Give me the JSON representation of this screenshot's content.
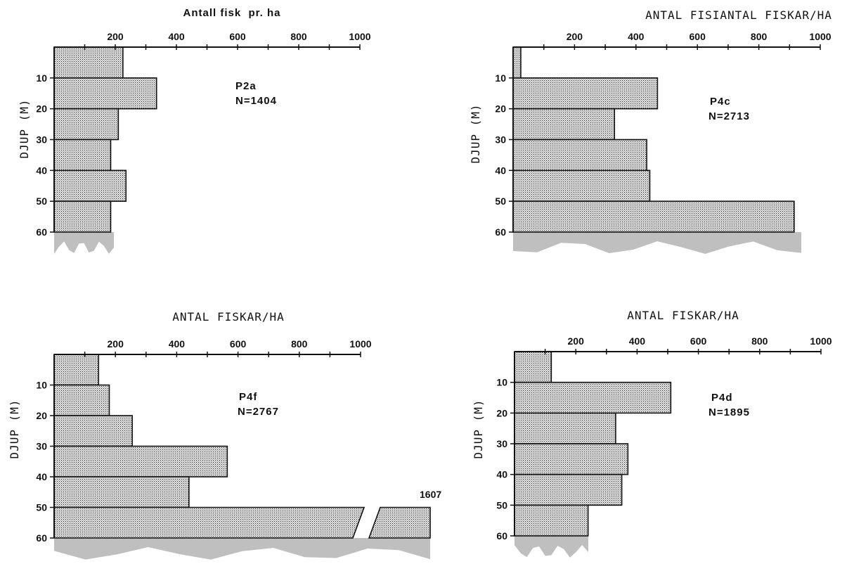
{
  "chart_data": [
    {
      "type": "bar",
      "orientation": "horizontal",
      "title": "Antall fisk  pr. ha",
      "ylabel": "DJUP (M)",
      "station": "P2a",
      "n_label": "N=1404",
      "xticks": [
        200,
        400,
        600,
        800,
        1000
      ],
      "yticks": [
        10,
        20,
        30,
        40,
        50,
        60
      ],
      "xlim": [
        0,
        1000
      ],
      "ylim": [
        0,
        60
      ],
      "depth_bins": [
        [
          0,
          10
        ],
        [
          10,
          20
        ],
        [
          20,
          30
        ],
        [
          30,
          40
        ],
        [
          40,
          50
        ],
        [
          50,
          60
        ]
      ],
      "values": [
        225,
        335,
        210,
        185,
        235,
        185
      ]
    },
    {
      "type": "bar",
      "orientation": "horizontal",
      "title": "ANTAL FISIANTAL FISKAR/HA",
      "ylabel": "DJUP (M)",
      "station": "P4c",
      "n_label": "N=2713",
      "xticks": [
        200,
        400,
        600,
        800,
        1000
      ],
      "yticks": [
        10,
        20,
        30,
        40,
        50,
        60
      ],
      "xlim": [
        0,
        1000
      ],
      "ylim": [
        0,
        60
      ],
      "depth_bins": [
        [
          0,
          10
        ],
        [
          10,
          20
        ],
        [
          20,
          30
        ],
        [
          30,
          40
        ],
        [
          40,
          50
        ],
        [
          50,
          60
        ]
      ],
      "values": [
        25,
        470,
        330,
        435,
        445,
        915
      ]
    },
    {
      "type": "bar",
      "orientation": "horizontal",
      "title": "ANTAL FISKAR/HA",
      "ylabel": "DJUP (M)",
      "station": "P4f",
      "n_label": "N=2767",
      "break_label": "1607",
      "xticks": [
        200,
        400,
        600,
        800,
        1000
      ],
      "yticks": [
        10,
        20,
        30,
        40,
        50,
        60
      ],
      "xlim": [
        0,
        1000
      ],
      "ylim": [
        0,
        60
      ],
      "depth_bins": [
        [
          0,
          10
        ],
        [
          10,
          20
        ],
        [
          20,
          30
        ],
        [
          30,
          40
        ],
        [
          40,
          50
        ],
        [
          50,
          60
        ]
      ],
      "values": [
        145,
        180,
        255,
        565,
        440,
        1607
      ]
    },
    {
      "type": "bar",
      "orientation": "horizontal",
      "title": "ANTAL FISKAR/HA",
      "ylabel": "DJUP (M)",
      "station": "P4d",
      "n_label": "N=1895",
      "xticks": [
        200,
        400,
        600,
        800,
        1000
      ],
      "yticks": [
        10,
        20,
        30,
        40,
        50,
        60
      ],
      "xlim": [
        0,
        1000
      ],
      "ylim": [
        0,
        60
      ],
      "depth_bins": [
        [
          0,
          10
        ],
        [
          10,
          20
        ],
        [
          20,
          30
        ],
        [
          30,
          40
        ],
        [
          40,
          50
        ],
        [
          50,
          60
        ]
      ],
      "values": [
        120,
        510,
        330,
        370,
        350,
        240
      ]
    }
  ],
  "colors": {
    "ink": "#111111",
    "bar_fill": "#c4c4c4",
    "sediment": "#8a8a8a"
  }
}
